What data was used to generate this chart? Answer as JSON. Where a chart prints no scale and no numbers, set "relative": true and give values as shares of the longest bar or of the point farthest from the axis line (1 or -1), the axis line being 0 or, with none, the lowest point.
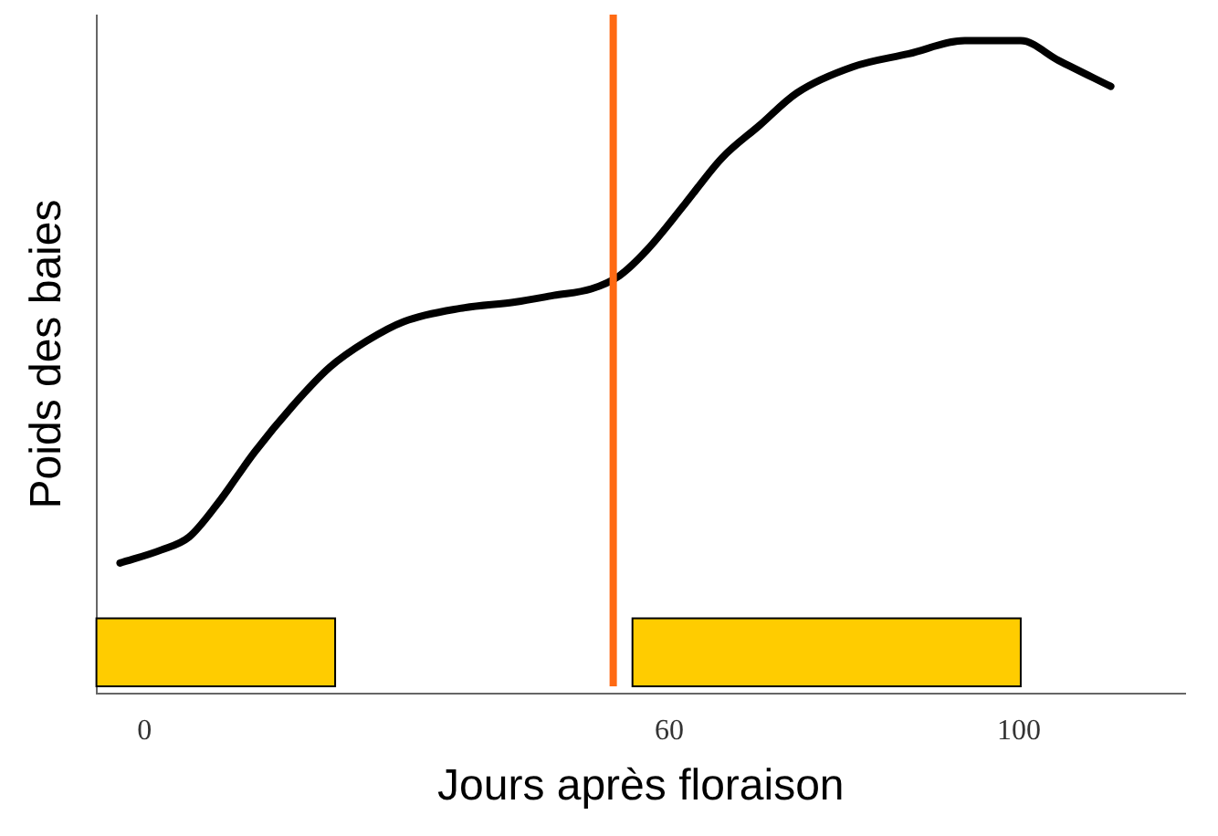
{
  "chart_data": {
    "type": "line",
    "xlabel": "Jours après floraison",
    "ylabel": "Poids des baies",
    "relative": true,
    "x": [
      -2.8,
      1.9,
      5.1,
      8.3,
      12.6,
      16.9,
      21.2,
      25.4,
      29.7,
      36.1,
      42.5,
      46.8,
      51.1,
      54.3,
      57.5,
      61.8,
      66.0,
      70.3,
      74.6,
      81.0,
      87.4,
      93.8,
      98.1,
      100.2,
      104.5,
      110.5
    ],
    "series": [
      {
        "color": "#000000",
        "values": [
          0.2,
          0.22,
          0.24,
          0.29,
          0.37,
          0.44,
          0.5,
          0.54,
          0.57,
          0.59,
          0.6,
          0.61,
          0.62,
          0.64,
          0.68,
          0.75,
          0.82,
          0.87,
          0.92,
          0.96,
          0.98,
          1.0,
          1.0,
          1.0,
          0.97,
          0.93
        ]
      }
    ],
    "xlim": [
      -5.5,
      119
    ],
    "xticks": [
      0,
      60,
      100
    ],
    "ref_lines": [
      {
        "axis": "x",
        "value": 53.6,
        "color": "#ff6a13"
      }
    ],
    "bands": [
      {
        "axis": "x",
        "from": -5.5,
        "to": 21.8,
        "color": "#ffcc00"
      },
      {
        "axis": "x",
        "from": 55.8,
        "to": 100.2,
        "color": "#ffcc00"
      }
    ],
    "grid": false,
    "legend": false,
    "marker": "none",
    "line_style": "solid",
    "tick_labels": "x"
  }
}
